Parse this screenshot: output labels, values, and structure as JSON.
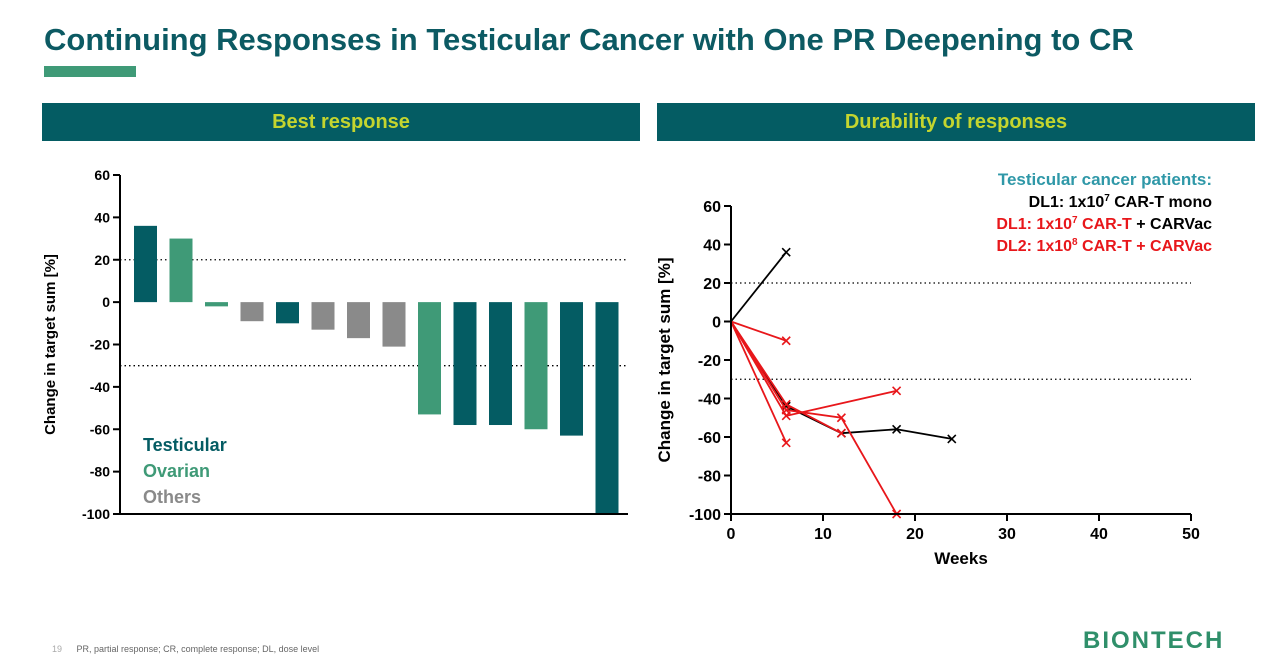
{
  "title": "Continuing Responses in Testicular Cancer with One PR Deepening to CR",
  "colors": {
    "testicular": "#045c63",
    "ovarian": "#3f9a77",
    "others": "#8a8a8a",
    "red": "#e8171b",
    "black": "#000000",
    "header_bg": "#045c63",
    "header_text": "#c4d52f"
  },
  "panels": {
    "left_header": "Best response",
    "right_header": "Durability of responses"
  },
  "chart_data": [
    {
      "type": "bar",
      "ylabel": "Change in target sum [%]",
      "ylim": [
        -100,
        60
      ],
      "yticks": [
        60,
        40,
        20,
        0,
        -20,
        -40,
        -60,
        -80,
        -100
      ],
      "reference_lines": [
        20,
        -30
      ],
      "legend": [
        {
          "label": "Testicular",
          "group": "testicular"
        },
        {
          "label": "Ovarian",
          "group": "ovarian"
        },
        {
          "label": "Others",
          "group": "others"
        }
      ],
      "bars": [
        {
          "value": 36,
          "group": "testicular"
        },
        {
          "value": 30,
          "group": "ovarian"
        },
        {
          "value": -2,
          "group": "ovarian"
        },
        {
          "value": -9,
          "group": "others"
        },
        {
          "value": -10,
          "group": "testicular"
        },
        {
          "value": -13,
          "group": "others"
        },
        {
          "value": -17,
          "group": "others"
        },
        {
          "value": -21,
          "group": "others"
        },
        {
          "value": -53,
          "group": "ovarian"
        },
        {
          "value": -58,
          "group": "testicular"
        },
        {
          "value": -58,
          "group": "testicular"
        },
        {
          "value": -60,
          "group": "ovarian"
        },
        {
          "value": -63,
          "group": "testicular"
        },
        {
          "value": -100,
          "group": "testicular"
        }
      ]
    },
    {
      "type": "line",
      "xlabel": "Weeks",
      "ylabel": "Change in target sum [%]",
      "xlim": [
        0,
        50
      ],
      "ylim": [
        -100,
        60
      ],
      "xticks": [
        0,
        10,
        20,
        30,
        40,
        50
      ],
      "yticks": [
        60,
        40,
        20,
        0,
        -20,
        -40,
        -60,
        -80,
        -100
      ],
      "reference_lines": [
        20,
        -30
      ],
      "legend_title": "Testicular cancer patients:",
      "legend": [
        {
          "parts": [
            "DL1: 1x10",
            "7",
            " CAR-T mono"
          ],
          "color": "black"
        },
        {
          "parts": [
            "DL1: 1x10",
            "7",
            " CAR-T",
            " + CARVac"
          ],
          "color": "red"
        },
        {
          "parts": [
            "DL2: 1x10",
            "8",
            " CAR-T + CARVac"
          ],
          "color": "red"
        }
      ],
      "series": [
        {
          "color": "black",
          "x": [
            0,
            6
          ],
          "y": [
            0,
            36
          ]
        },
        {
          "color": "black",
          "x": [
            0,
            6,
            12,
            18,
            24
          ],
          "y": [
            0,
            -44,
            -58,
            -56,
            -61
          ]
        },
        {
          "color": "red",
          "x": [
            0,
            6
          ],
          "y": [
            0,
            -10
          ]
        },
        {
          "color": "red",
          "x": [
            0,
            6,
            12
          ],
          "y": [
            0,
            -43,
            -58
          ]
        },
        {
          "color": "red",
          "x": [
            0,
            6,
            12,
            18
          ],
          "y": [
            0,
            -46,
            -50,
            -100
          ]
        },
        {
          "color": "red",
          "x": [
            0,
            6
          ],
          "y": [
            0,
            -63
          ]
        },
        {
          "color": "red",
          "x": [
            0,
            6,
            18
          ],
          "y": [
            0,
            -49,
            -36
          ]
        }
      ]
    }
  ],
  "footer": {
    "page": "19",
    "note": "PR, partial response; CR, complete response; DL, dose level"
  },
  "logo": "BIONTECH"
}
